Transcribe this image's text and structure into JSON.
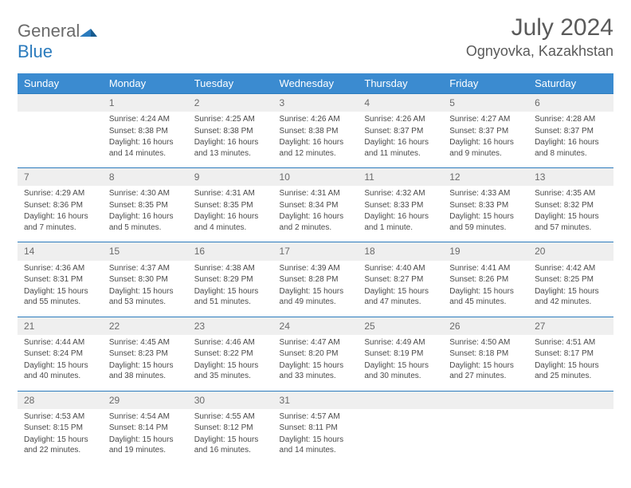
{
  "brand": {
    "name1": "General",
    "name2": "Blue"
  },
  "title": "July 2024",
  "location": "Ognyovka, Kazakhstan",
  "colors": {
    "header_bg": "#3b8bd0",
    "header_text": "#ffffff",
    "daynum_bg": "#efefef",
    "daynum_border": "#2b7bbd",
    "body_text": "#4a4a4a",
    "logo_blue": "#2b7bbd"
  },
  "layout": {
    "columns": 7,
    "rows": 5,
    "first_weekday_offset": 1
  },
  "weekdays": [
    "Sunday",
    "Monday",
    "Tuesday",
    "Wednesday",
    "Thursday",
    "Friday",
    "Saturday"
  ],
  "days": [
    {
      "n": 1,
      "sunrise": "4:24 AM",
      "sunset": "8:38 PM",
      "daylight": "16 hours and 14 minutes."
    },
    {
      "n": 2,
      "sunrise": "4:25 AM",
      "sunset": "8:38 PM",
      "daylight": "16 hours and 13 minutes."
    },
    {
      "n": 3,
      "sunrise": "4:26 AM",
      "sunset": "8:38 PM",
      "daylight": "16 hours and 12 minutes."
    },
    {
      "n": 4,
      "sunrise": "4:26 AM",
      "sunset": "8:37 PM",
      "daylight": "16 hours and 11 minutes."
    },
    {
      "n": 5,
      "sunrise": "4:27 AM",
      "sunset": "8:37 PM",
      "daylight": "16 hours and 9 minutes."
    },
    {
      "n": 6,
      "sunrise": "4:28 AM",
      "sunset": "8:37 PM",
      "daylight": "16 hours and 8 minutes."
    },
    {
      "n": 7,
      "sunrise": "4:29 AM",
      "sunset": "8:36 PM",
      "daylight": "16 hours and 7 minutes."
    },
    {
      "n": 8,
      "sunrise": "4:30 AM",
      "sunset": "8:35 PM",
      "daylight": "16 hours and 5 minutes."
    },
    {
      "n": 9,
      "sunrise": "4:31 AM",
      "sunset": "8:35 PM",
      "daylight": "16 hours and 4 minutes."
    },
    {
      "n": 10,
      "sunrise": "4:31 AM",
      "sunset": "8:34 PM",
      "daylight": "16 hours and 2 minutes."
    },
    {
      "n": 11,
      "sunrise": "4:32 AM",
      "sunset": "8:33 PM",
      "daylight": "16 hours and 1 minute."
    },
    {
      "n": 12,
      "sunrise": "4:33 AM",
      "sunset": "8:33 PM",
      "daylight": "15 hours and 59 minutes."
    },
    {
      "n": 13,
      "sunrise": "4:35 AM",
      "sunset": "8:32 PM",
      "daylight": "15 hours and 57 minutes."
    },
    {
      "n": 14,
      "sunrise": "4:36 AM",
      "sunset": "8:31 PM",
      "daylight": "15 hours and 55 minutes."
    },
    {
      "n": 15,
      "sunrise": "4:37 AM",
      "sunset": "8:30 PM",
      "daylight": "15 hours and 53 minutes."
    },
    {
      "n": 16,
      "sunrise": "4:38 AM",
      "sunset": "8:29 PM",
      "daylight": "15 hours and 51 minutes."
    },
    {
      "n": 17,
      "sunrise": "4:39 AM",
      "sunset": "8:28 PM",
      "daylight": "15 hours and 49 minutes."
    },
    {
      "n": 18,
      "sunrise": "4:40 AM",
      "sunset": "8:27 PM",
      "daylight": "15 hours and 47 minutes."
    },
    {
      "n": 19,
      "sunrise": "4:41 AM",
      "sunset": "8:26 PM",
      "daylight": "15 hours and 45 minutes."
    },
    {
      "n": 20,
      "sunrise": "4:42 AM",
      "sunset": "8:25 PM",
      "daylight": "15 hours and 42 minutes."
    },
    {
      "n": 21,
      "sunrise": "4:44 AM",
      "sunset": "8:24 PM",
      "daylight": "15 hours and 40 minutes."
    },
    {
      "n": 22,
      "sunrise": "4:45 AM",
      "sunset": "8:23 PM",
      "daylight": "15 hours and 38 minutes."
    },
    {
      "n": 23,
      "sunrise": "4:46 AM",
      "sunset": "8:22 PM",
      "daylight": "15 hours and 35 minutes."
    },
    {
      "n": 24,
      "sunrise": "4:47 AM",
      "sunset": "8:20 PM",
      "daylight": "15 hours and 33 minutes."
    },
    {
      "n": 25,
      "sunrise": "4:49 AM",
      "sunset": "8:19 PM",
      "daylight": "15 hours and 30 minutes."
    },
    {
      "n": 26,
      "sunrise": "4:50 AM",
      "sunset": "8:18 PM",
      "daylight": "15 hours and 27 minutes."
    },
    {
      "n": 27,
      "sunrise": "4:51 AM",
      "sunset": "8:17 PM",
      "daylight": "15 hours and 25 minutes."
    },
    {
      "n": 28,
      "sunrise": "4:53 AM",
      "sunset": "8:15 PM",
      "daylight": "15 hours and 22 minutes."
    },
    {
      "n": 29,
      "sunrise": "4:54 AM",
      "sunset": "8:14 PM",
      "daylight": "15 hours and 19 minutes."
    },
    {
      "n": 30,
      "sunrise": "4:55 AM",
      "sunset": "8:12 PM",
      "daylight": "15 hours and 16 minutes."
    },
    {
      "n": 31,
      "sunrise": "4:57 AM",
      "sunset": "8:11 PM",
      "daylight": "15 hours and 14 minutes."
    }
  ],
  "labels": {
    "sunrise": "Sunrise:",
    "sunset": "Sunset:",
    "daylight": "Daylight:"
  }
}
